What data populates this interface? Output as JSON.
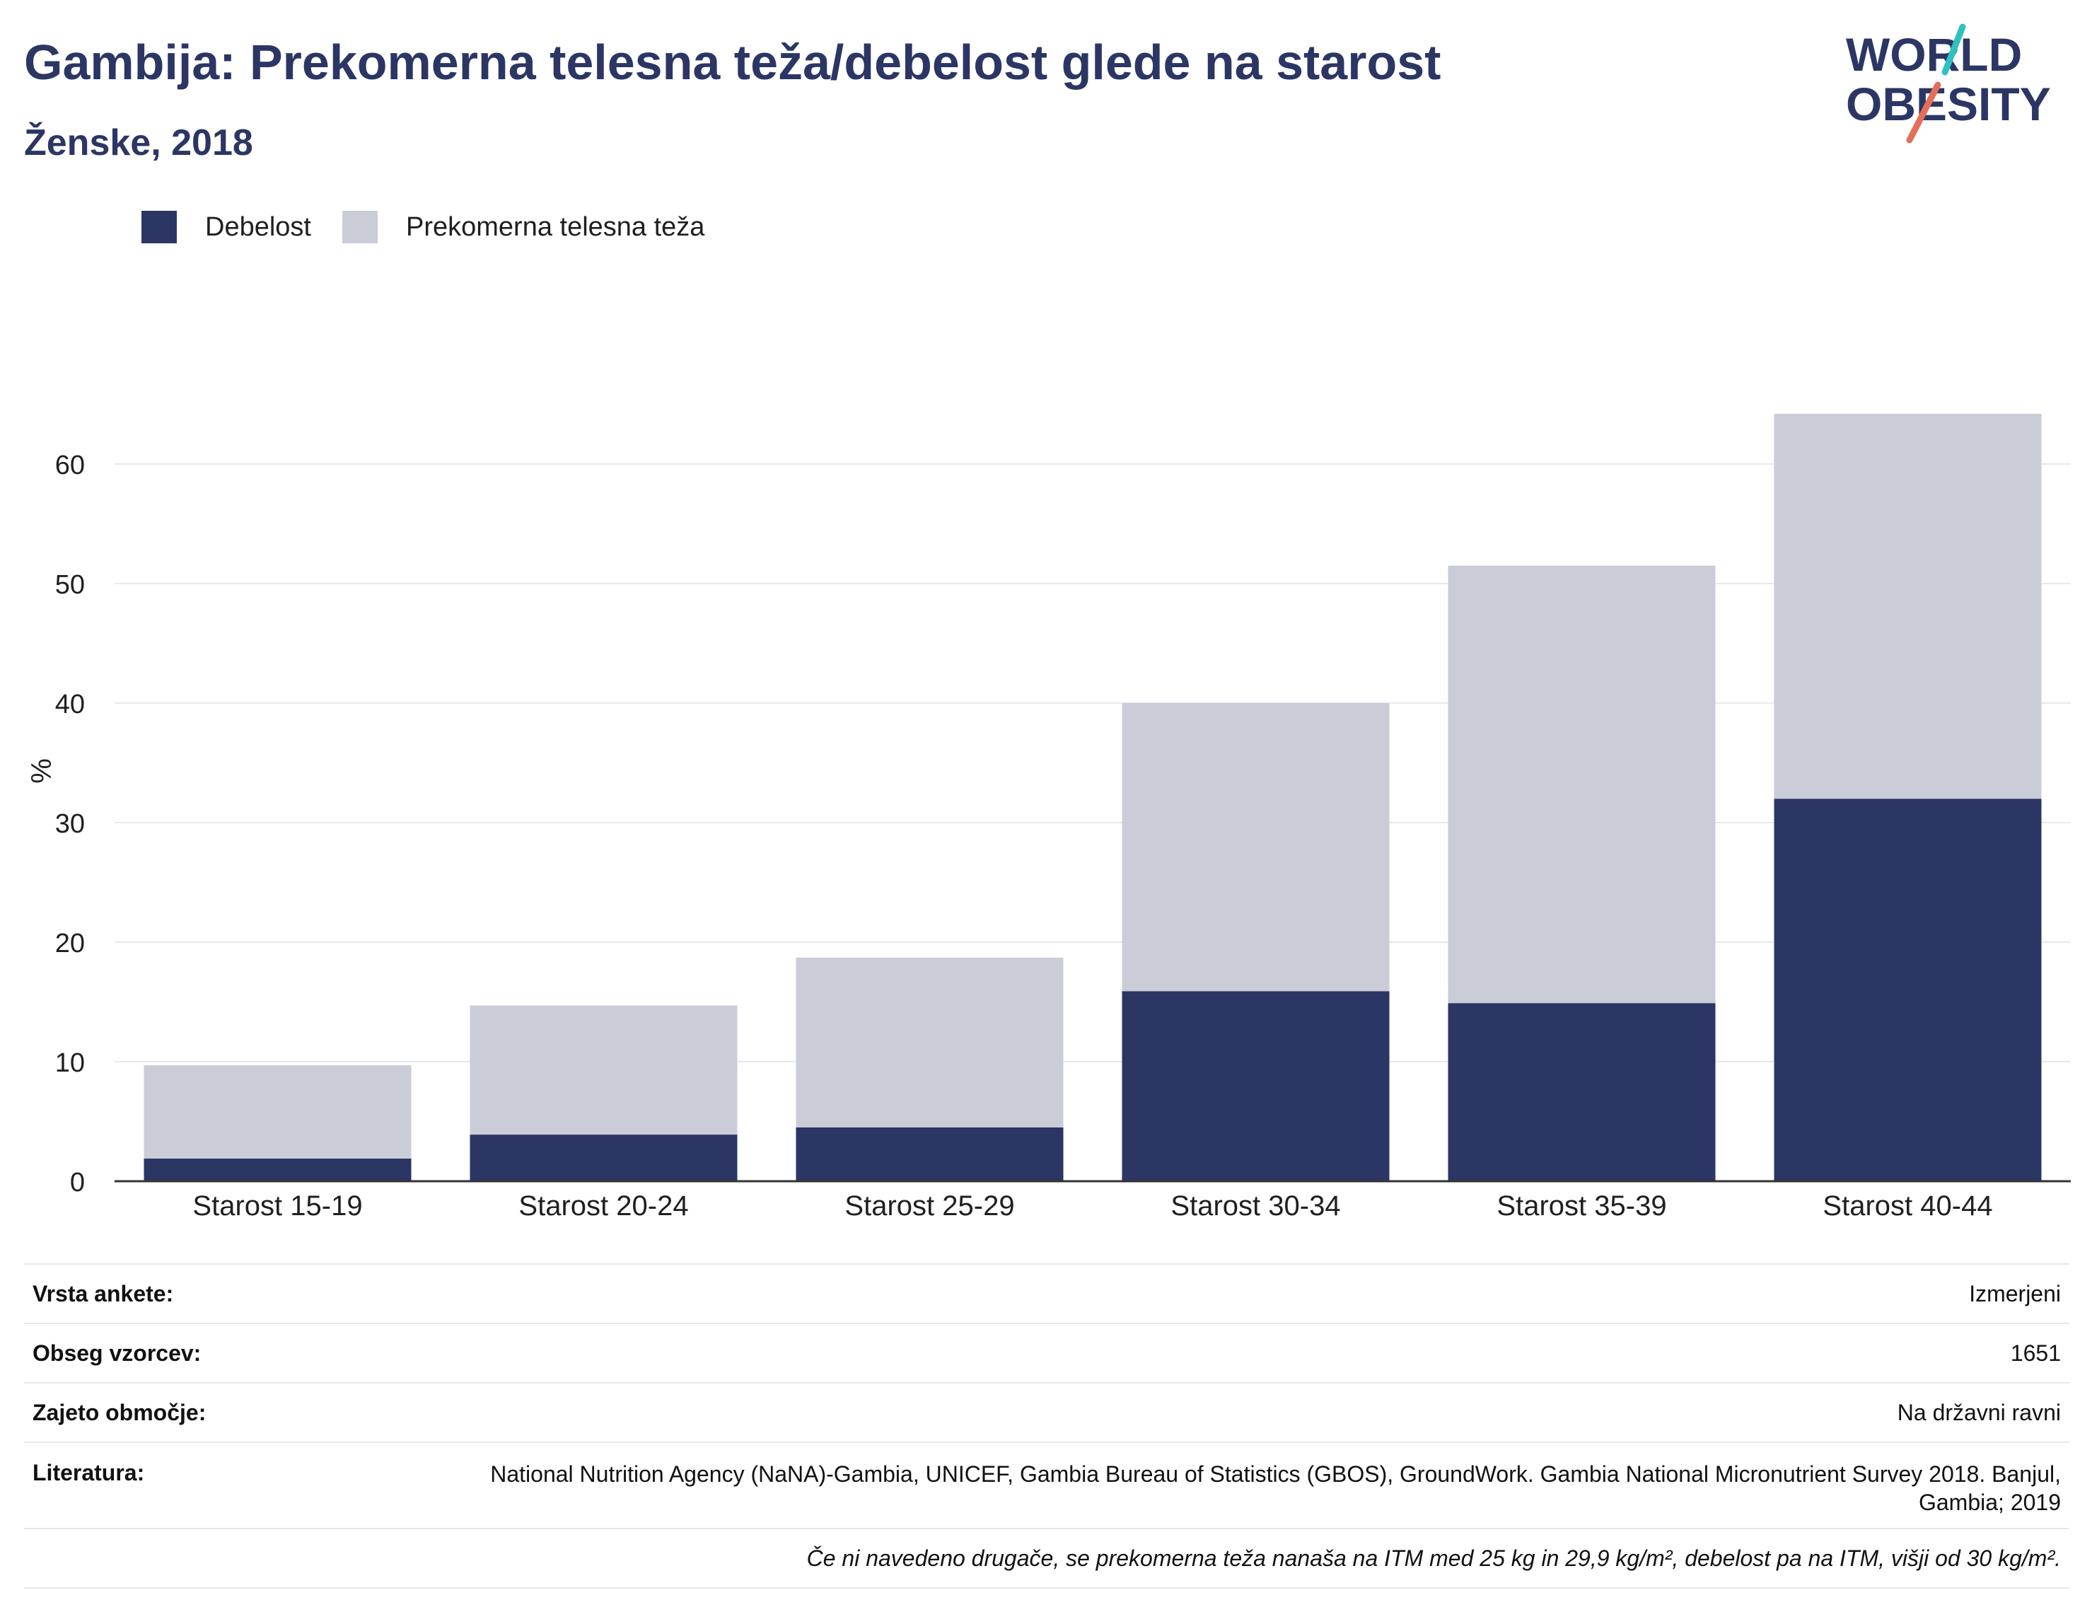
{
  "header": {
    "title": "Gambija: Prekomerna telesna teža/debelost glede na starost",
    "subtitle": "Ženske, 2018"
  },
  "logo": {
    "line1": "WORLD",
    "line2": "OBESITY"
  },
  "colors": {
    "obesity": "#2b3664",
    "overweight": "#cacdd8",
    "text": "#2b3664",
    "grid": "#e8e9ee"
  },
  "legend": [
    {
      "label": "Debelost",
      "color": "#2b3664"
    },
    {
      "label": "Prekomerna telesna teža",
      "color": "#cacdd8"
    }
  ],
  "chart_data": {
    "type": "bar",
    "stacked": true,
    "categories": [
      "Starost 15-19",
      "Starost 20-24",
      "Starost 25-29",
      "Starost 30-34",
      "Starost 35-39",
      "Starost 40-44"
    ],
    "series": [
      {
        "name": "Debelost",
        "values": [
          1.9,
          3.9,
          4.5,
          15.9,
          14.9,
          32.0
        ]
      },
      {
        "name": "Prekomerna telesna teža",
        "values": [
          7.8,
          10.8,
          14.2,
          24.1,
          36.6,
          32.2
        ]
      }
    ],
    "ylabel": "%",
    "ylim": [
      0,
      70
    ],
    "yticks": [
      0,
      10,
      20,
      30,
      40,
      50,
      60
    ],
    "grid": true,
    "legend_position": "top-left"
  },
  "info_table": {
    "rows": [
      {
        "label": "Vrsta ankete:",
        "value": "Izmerjeni"
      },
      {
        "label": "Obseg vzorcev:",
        "value": "1651"
      },
      {
        "label": "Zajeto območje:",
        "value": "Na državni ravni"
      },
      {
        "label": "Literatura:",
        "value": "National Nutrition Agency (NaNA)-Gambia, UNICEF, Gambia Bureau of Statistics (GBOS), GroundWork. Gambia National Micronutrient Survey 2018. Banjul, Gambia; 2019"
      }
    ],
    "note": "Če ni navedeno drugače, se prekomerna teža nanaša na ITM med 25 kg in 29,9 kg/m², debelost pa na ITM, višji od 30 kg/m²."
  }
}
